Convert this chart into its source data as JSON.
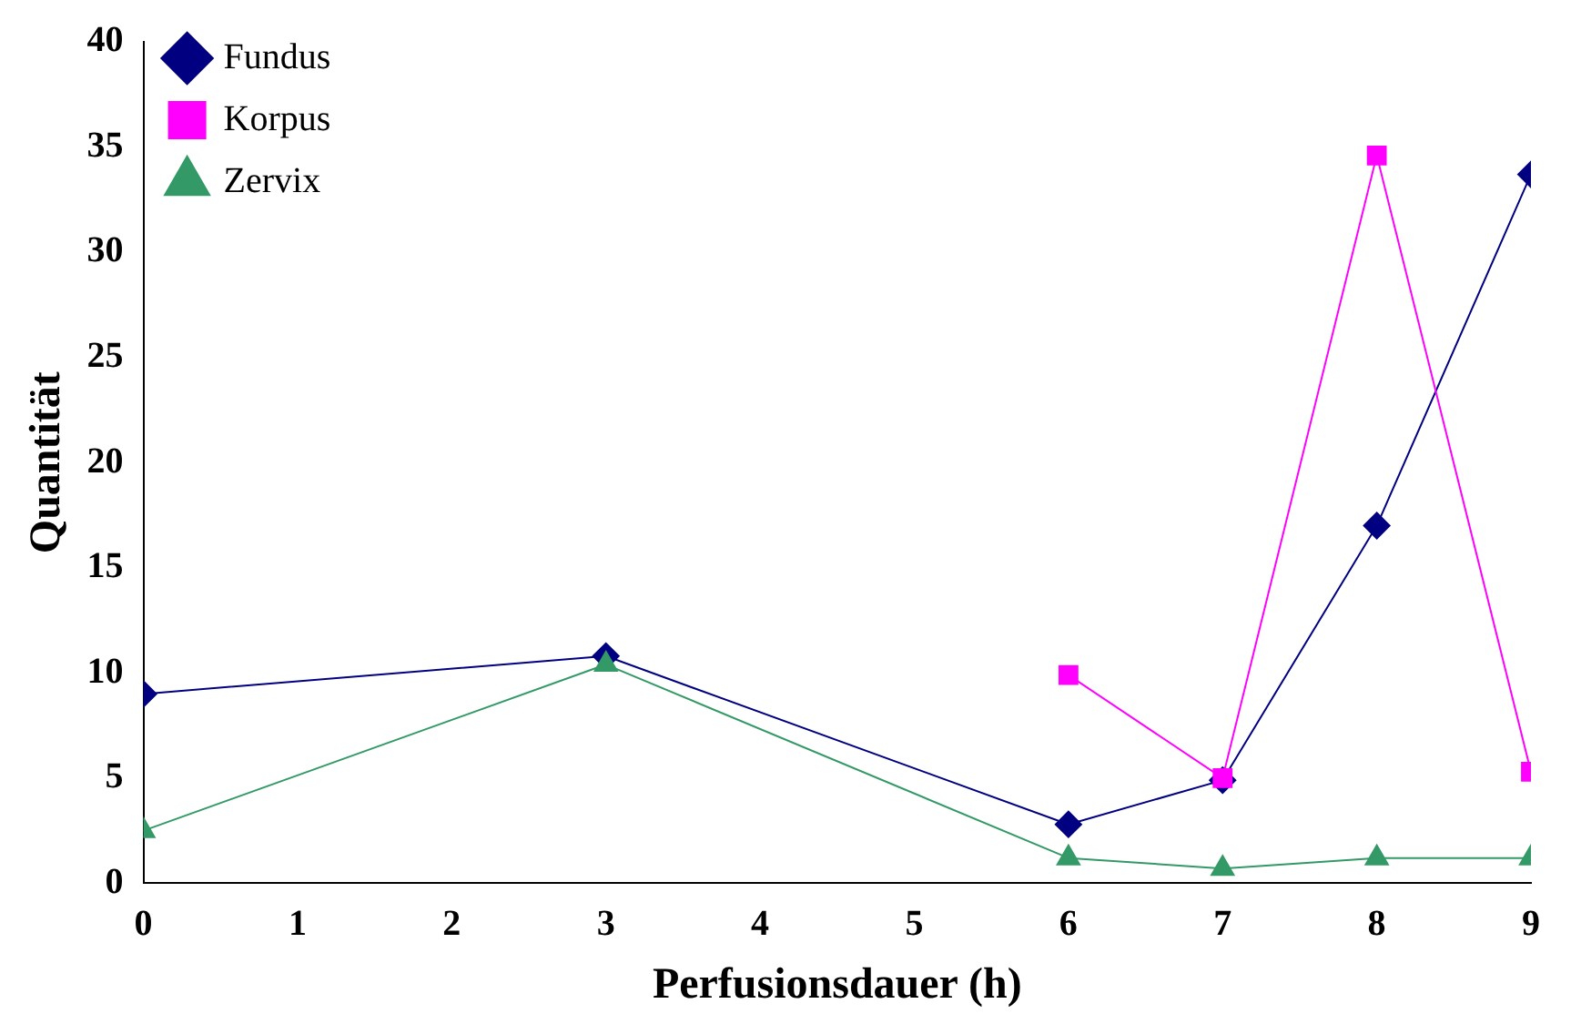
{
  "chart_data": {
    "type": "line",
    "xlabel": "Perfusionsdauer (h)",
    "ylabel": "Quantität",
    "x": [
      0,
      3,
      6,
      7,
      8,
      9
    ],
    "series": [
      {
        "name": "Fundus",
        "color": "#000080",
        "marker": "diamond",
        "values": [
          9.0,
          10.8,
          2.8,
          4.9,
          17.0,
          33.7
        ]
      },
      {
        "name": "Korpus",
        "color": "#ff00ff",
        "marker": "square",
        "values": [
          null,
          null,
          9.9,
          5.0,
          34.6,
          5.3
        ]
      },
      {
        "name": "Zervix",
        "color": "#339966",
        "marker": "triangle",
        "values": [
          2.5,
          10.4,
          1.2,
          0.7,
          1.2,
          1.2
        ]
      }
    ],
    "xlim": [
      0,
      9
    ],
    "xticks": [
      0,
      1,
      2,
      3,
      4,
      5,
      6,
      7,
      8,
      9
    ],
    "ylim": [
      0,
      40
    ],
    "yticks": [
      0,
      5,
      10,
      15,
      20,
      25,
      30,
      35,
      40
    ],
    "grid": false,
    "legend": "top left",
    "line_style": "solid"
  }
}
